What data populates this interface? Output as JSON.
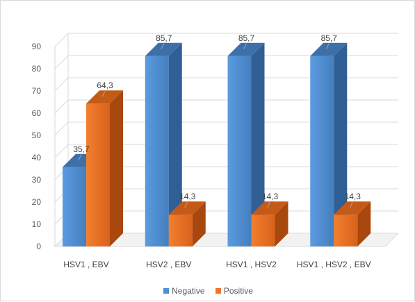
{
  "chart_data": {
    "type": "bar",
    "style": "3d-clustered-column",
    "title": "",
    "xlabel": "",
    "ylabel": "",
    "categories": [
      "HSV1 , EBV",
      "HSV2 , EBV",
      "HSV1 , HSV2",
      "HSV1 , HSV2 , EBV"
    ],
    "series": [
      {
        "name": "Negative",
        "values": [
          35.7,
          85.7,
          85.7,
          85.7
        ],
        "labels": [
          "35,7",
          "85,7",
          "85,7",
          "85,7"
        ],
        "color": "#4e8fd4"
      },
      {
        "name": "Positive",
        "values": [
          64.3,
          14.3,
          14.3,
          14.3
        ],
        "labels": [
          "64,3",
          "14,3",
          "14,3",
          "14,3"
        ],
        "color": "#ee7426"
      }
    ],
    "ylim": [
      0,
      90
    ],
    "yticks": [
      0,
      10,
      20,
      30,
      40,
      50,
      60,
      70,
      80,
      90
    ],
    "grid": true,
    "legend_position": "bottom"
  }
}
